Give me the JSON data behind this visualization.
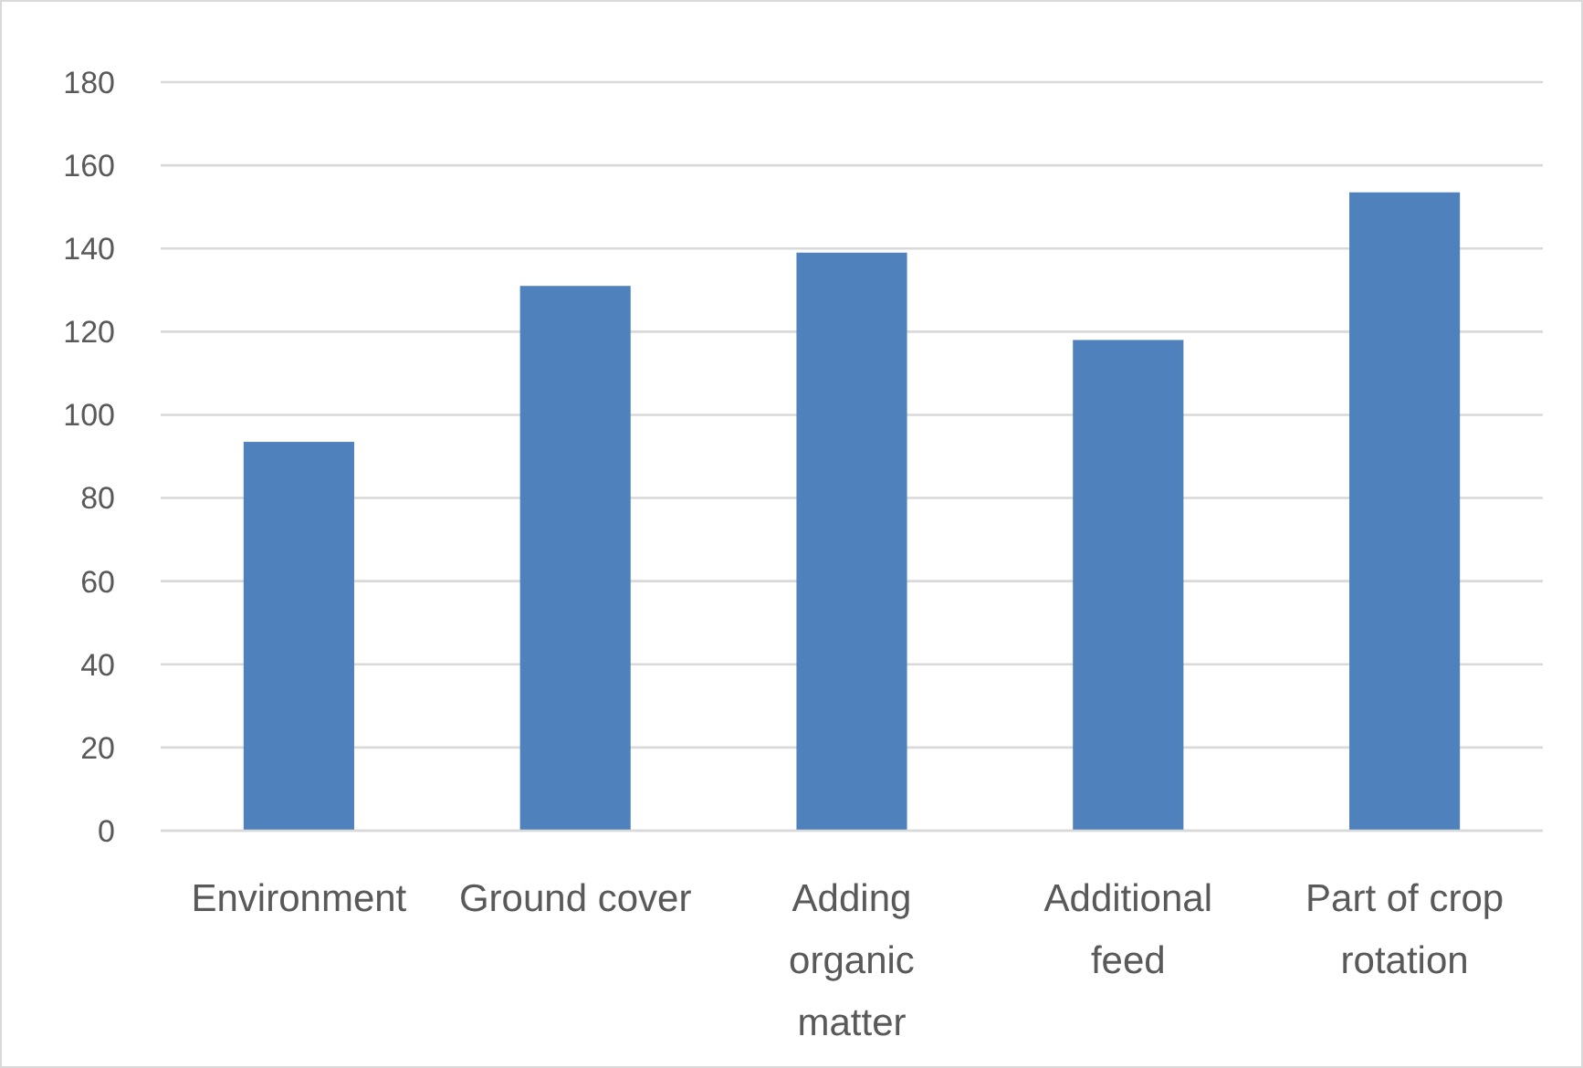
{
  "chart_data": {
    "type": "bar",
    "categories": [
      "Environment",
      "Ground cover",
      "Adding organic matter",
      "Additional feed",
      "Part of crop rotation"
    ],
    "values": [
      93.5,
      131,
      139,
      118,
      153.5
    ],
    "color": "#4f81bd",
    "ylim": [
      0,
      180
    ],
    "yticks": [
      0,
      20,
      40,
      60,
      80,
      100,
      120,
      140,
      160,
      180
    ],
    "grid": "y"
  }
}
